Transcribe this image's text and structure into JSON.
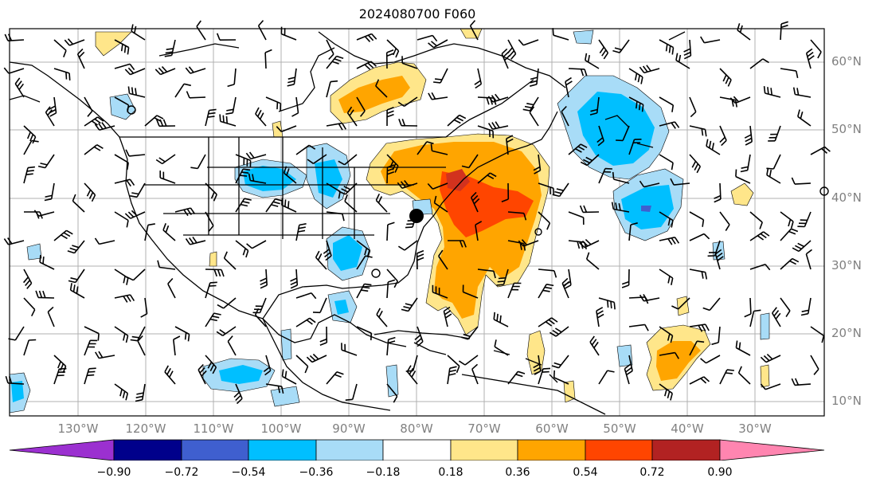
{
  "title": "2024080700 F060",
  "lat_labels": [
    "60°N",
    "50°N",
    "40°N",
    "30°N",
    "20°N",
    "10°N"
  ],
  "lon_labels": [
    "130°W",
    "120°W",
    "110°W",
    "100°W",
    "90°W",
    "80°W",
    "70°W",
    "60°W",
    "50°W",
    "40°W",
    "30°W"
  ],
  "colorbar": {
    "tick_labels": [
      "−0.90",
      "−0.72",
      "−0.54",
      "−0.36",
      "−0.18",
      "0.18",
      "0.36",
      "0.54",
      "0.72",
      "0.90"
    ],
    "colors": [
      "#9b30d0",
      "#00008b",
      "#3f5fcf",
      "#00bfff",
      "#a8dcf7",
      "#ffffff",
      "#ffe68a",
      "#ffa500",
      "#ff4500",
      "#b22222",
      "#ff85b0"
    ]
  },
  "map_colors": {
    "warm_light": "#ffe68a",
    "warm_mid": "#ffa500",
    "warm_strong": "#ff4500",
    "cool_light": "#a8dcf7",
    "cool_mid": "#00bfff",
    "cool_strong": "#3f5fcf",
    "grid": "#b0b0b0",
    "coast": "#000000"
  }
}
